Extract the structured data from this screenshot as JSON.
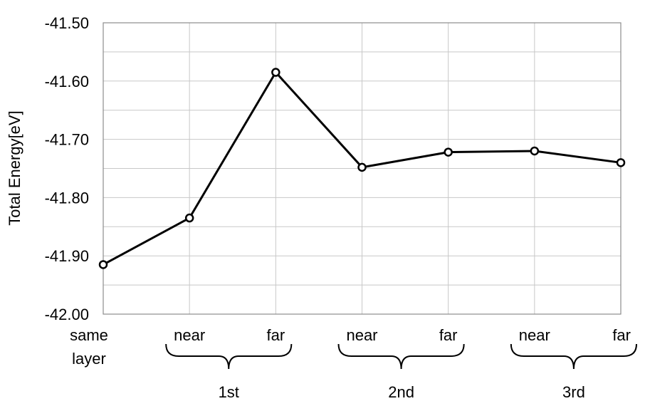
{
  "chart_data": {
    "type": "line",
    "ylabel": "Total Energy[eV]",
    "ylim": [
      -42.0,
      -41.5
    ],
    "yticks": [
      "-41.50",
      "-41.60",
      "-41.70",
      "-41.80",
      "-41.90",
      "-42.00"
    ],
    "grid": true,
    "categories": [
      [
        "same",
        "layer"
      ],
      [
        "near"
      ],
      [
        "far"
      ],
      [
        "near"
      ],
      [
        "far"
      ],
      [
        "near"
      ],
      [
        "far"
      ]
    ],
    "groups": [
      {
        "label": "1st",
        "span": [
          1,
          2
        ]
      },
      {
        "label": "2nd",
        "span": [
          3,
          4
        ]
      },
      {
        "label": "3rd",
        "span": [
          5,
          6
        ]
      }
    ],
    "series": [
      {
        "values": [
          -41.915,
          -41.835,
          -41.585,
          -41.748,
          -41.722,
          -41.72,
          -41.74
        ]
      }
    ],
    "colors": {
      "line": "#000000",
      "grid": "#c8c8c8",
      "marker_fill": "#ffffff"
    }
  }
}
